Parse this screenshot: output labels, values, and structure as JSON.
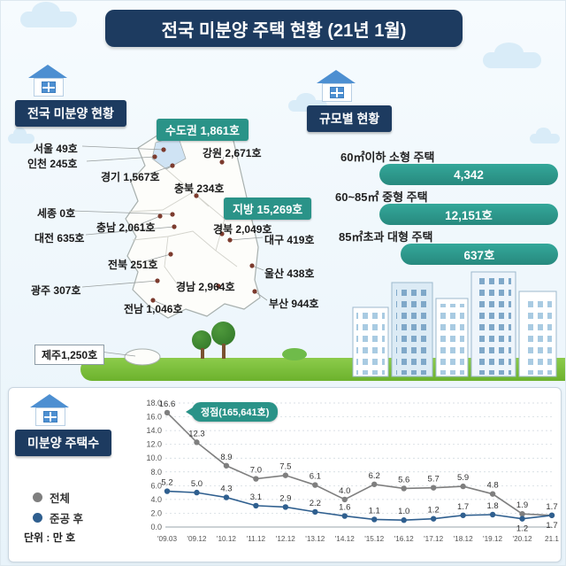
{
  "header": {
    "title": "전국 미분양 주택 현황 (21년 1월)"
  },
  "left_section": {
    "banner": "전국 미분양 현황",
    "badges": [
      {
        "label": "수도권 1,861호"
      },
      {
        "label": "지방 15,269호"
      }
    ],
    "regions": [
      {
        "label": "서울 49호"
      },
      {
        "label": "인천 245호"
      },
      {
        "label": "경기 1,567호"
      },
      {
        "label": "강원 2,671호"
      },
      {
        "label": "충북 234호"
      },
      {
        "label": "세종 0호"
      },
      {
        "label": "충남 2,061호"
      },
      {
        "label": "대전 635호"
      },
      {
        "label": "경북 2,049호"
      },
      {
        "label": "대구 419호"
      },
      {
        "label": "전북 251호"
      },
      {
        "label": "울산 438호"
      },
      {
        "label": "경남 2,964호"
      },
      {
        "label": "광주 307호"
      },
      {
        "label": "전남 1,046호"
      },
      {
        "label": "부산 944호"
      },
      {
        "label": "제주1,250호"
      }
    ]
  },
  "right_section": {
    "banner": "규모별 현황",
    "items": [
      {
        "label": "60㎡이하 소형 주택",
        "value": "4,342"
      },
      {
        "label": "60~85㎡ 중형 주택",
        "value": "12,151호"
      },
      {
        "label": "85㎡초과 대형 주택",
        "value": "637호"
      }
    ]
  },
  "bottom_section": {
    "banner": "미분양 주택수",
    "legend": [
      {
        "label": "전체",
        "color": "#7f7f7f"
      },
      {
        "label": "준공 후",
        "color": "#2f5f8f"
      }
    ],
    "unit_note": "단위 : 만 호"
  },
  "chart_data": {
    "type": "line",
    "categories": [
      "'09.03",
      "'09.12",
      "'10.12",
      "'11.12",
      "'12.12",
      "'13.12",
      "'14.12",
      "'15.12",
      "'16.12",
      "'17.12",
      "'18.12",
      "'19.12",
      "'20.12",
      "21.1"
    ],
    "series": [
      {
        "name": "전체",
        "color": "#7f7f7f",
        "values": [
          16.6,
          12.3,
          8.9,
          7.0,
          7.5,
          6.1,
          4.0,
          6.2,
          5.6,
          5.7,
          5.9,
          4.8,
          1.9,
          1.7
        ]
      },
      {
        "name": "준공 후",
        "color": "#2f5f8f",
        "values": [
          5.2,
          5.0,
          4.3,
          3.1,
          2.9,
          2.2,
          1.6,
          1.1,
          1.0,
          1.2,
          1.7,
          1.8,
          1.2,
          1.7
        ]
      }
    ],
    "title": "미분양 주택수",
    "xlabel": "",
    "ylabel": "",
    "ylim": [
      0,
      18
    ],
    "ytick_step": 2,
    "unit": "만 호",
    "grid": true,
    "legend_position": "left",
    "annotation": {
      "text": "정점(165,641호)",
      "x_index": 0
    }
  }
}
